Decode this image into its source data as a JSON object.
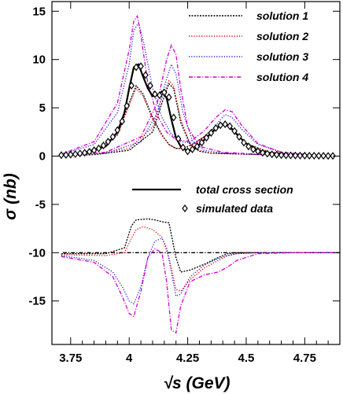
{
  "chart_data": {
    "type": "line",
    "xlabel": "√s (GeV)",
    "ylabel": "σ (nb)",
    "xlim": [
      3.67,
      4.9
    ],
    "ylim": [
      -19.5,
      16
    ],
    "xticks": [
      "3.75",
      "4",
      "4.25",
      "4.5",
      "4.75"
    ],
    "yticks": [
      "15",
      "10",
      "5",
      "0",
      "-5",
      "-10",
      "-15"
    ],
    "legend_top": [
      {
        "name": "solution 1",
        "color": "#000000",
        "style": "densedot"
      },
      {
        "name": "solution 2",
        "color": "#e00000",
        "style": "dot"
      },
      {
        "name": "solution 3",
        "color": "#2020d0",
        "style": "dot"
      },
      {
        "name": "solution 4",
        "color": "#d000d0",
        "style": "dashdot"
      }
    ],
    "legend_bottom": [
      {
        "name": "total cross section",
        "marker": "line"
      },
      {
        "name": "simulated data",
        "marker": "diamond"
      }
    ],
    "reference_line": {
      "y": -10,
      "color": "#000000",
      "style": "dashdot"
    },
    "total_cross_section": {
      "x": [
        3.71,
        3.8,
        3.9,
        3.95,
        3.98,
        4.0,
        4.02,
        4.04,
        4.06,
        4.08,
        4.1,
        4.12,
        4.14,
        4.16,
        4.18,
        4.2,
        4.22,
        4.25,
        4.28,
        4.3,
        4.33,
        4.36,
        4.38,
        4.4,
        4.42,
        4.44,
        4.47,
        4.5,
        4.55,
        4.6,
        4.7,
        4.8,
        4.88
      ],
      "y": [
        0.1,
        0.3,
        1.0,
        2.5,
        4.5,
        7.0,
        9.2,
        9.5,
        8.2,
        7.0,
        6.2,
        6.3,
        6.7,
        6.0,
        3.8,
        1.9,
        1.0,
        0.5,
        0.8,
        1.2,
        1.9,
        2.6,
        3.0,
        3.3,
        3.2,
        2.8,
        2.0,
        1.3,
        0.6,
        0.3,
        0.1,
        0.05,
        0.02
      ]
    },
    "simulated_data": {
      "x": [
        3.71,
        3.73,
        3.75,
        3.77,
        3.79,
        3.81,
        3.83,
        3.85,
        3.87,
        3.89,
        3.91,
        3.93,
        3.95,
        3.97,
        3.99,
        4.01,
        4.03,
        4.05,
        4.07,
        4.09,
        4.11,
        4.13,
        4.15,
        4.17,
        4.19,
        4.21,
        4.23,
        4.25,
        4.27,
        4.29,
        4.31,
        4.33,
        4.35,
        4.37,
        4.39,
        4.41,
        4.43,
        4.45,
        4.47,
        4.49,
        4.51,
        4.53,
        4.55,
        4.57,
        4.59,
        4.61,
        4.63,
        4.65,
        4.67,
        4.69,
        4.71,
        4.73,
        4.75,
        4.77,
        4.79,
        4.81,
        4.83,
        4.85,
        4.87
      ],
      "y": [
        0.1,
        0.12,
        0.15,
        0.2,
        0.28,
        0.35,
        0.45,
        0.6,
        0.8,
        1.1,
        1.5,
        2.0,
        2.7,
        3.6,
        5.2,
        7.3,
        9.2,
        9.3,
        8.4,
        7.3,
        6.4,
        6.3,
        6.6,
        6.1,
        4.0,
        1.8,
        0.9,
        0.5,
        0.7,
        1.0,
        1.4,
        1.9,
        2.4,
        2.9,
        3.2,
        3.3,
        3.1,
        2.6,
        2.0,
        1.4,
        1.0,
        0.7,
        0.5,
        0.35,
        0.25,
        0.18,
        0.14,
        0.1,
        0.08,
        0.07,
        0.06,
        0.05,
        0.05,
        0.04,
        0.04,
        0.03,
        0.03,
        0.02,
        0.02
      ]
    },
    "series": [
      {
        "name": "solution 1",
        "color": "#000000",
        "style": "densedot",
        "x": [
          3.71,
          3.85,
          3.95,
          4.0,
          4.03,
          4.06,
          4.1,
          4.14,
          4.17,
          4.2,
          4.23,
          4.27,
          4.32,
          4.36,
          4.39,
          4.42,
          4.46,
          4.5,
          4.6,
          4.75,
          4.88
        ],
        "y": [
          0.1,
          0.5,
          2.2,
          5.5,
          7.3,
          6.4,
          4.0,
          2.2,
          1.2,
          0.8,
          0.8,
          1.2,
          2.0,
          2.9,
          3.3,
          3.1,
          2.2,
          1.3,
          0.4,
          0.1,
          0.05
        ],
        "x2": [
          3.71,
          3.85,
          4.0,
          4.1,
          4.14,
          4.17,
          4.19,
          4.22,
          4.26,
          4.3,
          4.35,
          4.5,
          4.7,
          4.88
        ],
        "y2": [
          0.05,
          0.15,
          0.6,
          2.5,
          5.5,
          7.5,
          7.0,
          3.5,
          1.2,
          0.5,
          0.3,
          0.2,
          0.1,
          0.05
        ],
        "x_int": [
          3.71,
          3.9,
          3.98,
          4.01,
          4.03,
          4.08,
          4.11,
          4.14,
          4.17,
          4.2,
          4.22,
          4.26,
          4.32,
          4.38,
          4.42,
          4.46,
          4.55,
          4.7,
          4.88
        ],
        "y_int": [
          -10.1,
          -10.1,
          -9.5,
          -7.2,
          -6.6,
          -6.5,
          -6.6,
          -6.8,
          -6.9,
          -10.5,
          -12.0,
          -11.8,
          -11.2,
          -10.5,
          -10.1,
          -10.0,
          -10.0,
          -10.0,
          -10.0
        ]
      },
      {
        "name": "solution 2",
        "color": "#e00000",
        "style": "dot",
        "x": [
          3.71,
          3.85,
          3.95,
          4.0,
          4.03,
          4.06,
          4.1,
          4.14,
          4.17,
          4.2,
          4.23,
          4.27,
          4.32,
          4.36,
          4.39,
          4.42,
          4.46,
          4.5,
          4.6,
          4.75,
          4.88
        ],
        "y": [
          0.1,
          0.5,
          2.2,
          5.3,
          7.0,
          6.2,
          3.8,
          2.1,
          1.2,
          0.8,
          0.8,
          1.2,
          2.0,
          2.9,
          3.3,
          3.1,
          2.2,
          1.3,
          0.4,
          0.1,
          0.05
        ],
        "x2": [
          3.71,
          3.85,
          4.0,
          4.1,
          4.14,
          4.17,
          4.19,
          4.22,
          4.26,
          4.3,
          4.35,
          4.5,
          4.7,
          4.88
        ],
        "y2": [
          0.05,
          0.2,
          0.8,
          3.0,
          6.0,
          7.8,
          7.3,
          3.8,
          1.3,
          0.6,
          0.3,
          0.2,
          0.1,
          0.05
        ],
        "x_int": [
          3.71,
          3.9,
          3.98,
          4.01,
          4.03,
          4.06,
          4.1,
          4.14,
          4.17,
          4.2,
          4.22,
          4.26,
          4.32,
          4.38,
          4.42,
          4.46,
          4.55,
          4.7,
          4.88
        ],
        "y_int": [
          -10.2,
          -10.3,
          -10.0,
          -8.5,
          -7.6,
          -7.3,
          -7.6,
          -8.4,
          -10.5,
          -13.8,
          -14.0,
          -12.8,
          -11.6,
          -10.8,
          -10.3,
          -10.1,
          -10.0,
          -10.0,
          -10.0
        ]
      },
      {
        "name": "solution 3",
        "color": "#2020d0",
        "style": "dot",
        "x": [
          3.71,
          3.85,
          3.95,
          4.0,
          4.02,
          4.04,
          4.06,
          4.1,
          4.14,
          4.18,
          4.22,
          4.28,
          4.34,
          4.38,
          4.41,
          4.44,
          4.48,
          4.55,
          4.65,
          4.8,
          4.88
        ],
        "y": [
          0.2,
          1.2,
          4.5,
          9.5,
          13.0,
          13.8,
          12.0,
          7.0,
          4.0,
          2.3,
          1.5,
          1.3,
          2.2,
          3.5,
          4.3,
          4.0,
          2.8,
          1.2,
          0.4,
          0.1,
          0.05
        ],
        "x2": [
          3.71,
          3.9,
          4.05,
          4.12,
          4.16,
          4.18,
          4.2,
          4.23,
          4.27,
          4.32,
          4.4,
          4.55,
          4.75,
          4.88
        ],
        "y2": [
          0.05,
          0.3,
          1.5,
          4.5,
          8.0,
          9.5,
          8.5,
          4.5,
          1.6,
          0.6,
          0.3,
          0.15,
          0.08,
          0.05
        ],
        "x_int": [
          3.71,
          3.85,
          3.93,
          3.97,
          4.0,
          4.02,
          4.05,
          4.08,
          4.11,
          4.14,
          4.16,
          4.18,
          4.2,
          4.22,
          4.26,
          4.32,
          4.38,
          4.42,
          4.46,
          4.55,
          4.7,
          4.88
        ],
        "y_int": [
          -10.3,
          -10.8,
          -12.0,
          -13.5,
          -15.0,
          -15.3,
          -13.5,
          -10.5,
          -8.8,
          -8.5,
          -9.5,
          -12.0,
          -14.5,
          -14.3,
          -12.5,
          -11.3,
          -10.6,
          -10.3,
          -10.1,
          -10.0,
          -10.0,
          -10.0
        ]
      },
      {
        "name": "solution 4",
        "color": "#d000d0",
        "style": "dashdot",
        "x": [
          3.71,
          3.85,
          3.95,
          4.0,
          4.02,
          4.035,
          4.05,
          4.08,
          4.12,
          4.16,
          4.2,
          4.26,
          4.32,
          4.37,
          4.41,
          4.44,
          4.48,
          4.55,
          4.65,
          4.8,
          4.88
        ],
        "y": [
          0.2,
          1.5,
          5.5,
          11.0,
          14.0,
          14.5,
          12.5,
          7.5,
          4.2,
          2.5,
          1.7,
          1.5,
          2.6,
          4.0,
          4.8,
          4.6,
          3.2,
          1.3,
          0.4,
          0.1,
          0.05
        ],
        "x2": [
          3.71,
          3.9,
          4.05,
          4.12,
          4.16,
          4.18,
          4.2,
          4.22,
          4.25,
          4.3,
          4.4,
          4.55,
          4.75,
          4.88
        ],
        "y2": [
          0.05,
          0.4,
          2.0,
          5.5,
          10.0,
          11.5,
          10.5,
          7.0,
          3.0,
          1.0,
          0.4,
          0.2,
          0.1,
          0.05
        ],
        "x_int": [
          3.71,
          3.85,
          3.93,
          3.97,
          4.0,
          4.02,
          4.05,
          4.08,
          4.11,
          4.14,
          4.16,
          4.18,
          4.2,
          4.22,
          4.26,
          4.32,
          4.38,
          4.42,
          4.46,
          4.55,
          4.7,
          4.88
        ],
        "y_int": [
          -10.4,
          -11.0,
          -12.5,
          -14.5,
          -16.3,
          -16.6,
          -14.0,
          -10.5,
          -9.6,
          -10.0,
          -13.0,
          -18.0,
          -18.3,
          -15.5,
          -13.0,
          -12.3,
          -12.0,
          -11.5,
          -10.8,
          -10.1,
          -10.0,
          -10.0
        ]
      }
    ]
  }
}
